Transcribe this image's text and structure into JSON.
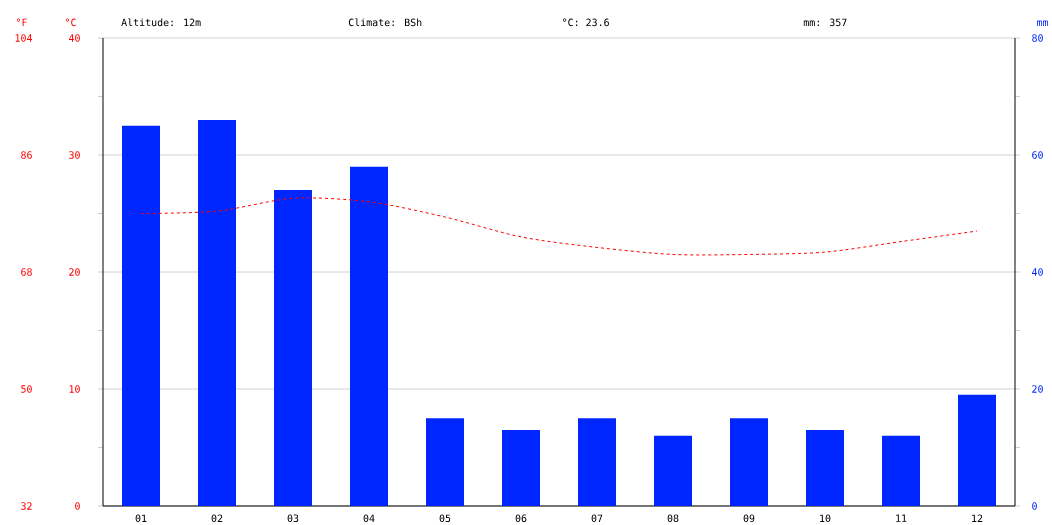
{
  "chart_data": {
    "type": "bar",
    "categories": [
      "01",
      "02",
      "03",
      "04",
      "05",
      "06",
      "07",
      "08",
      "09",
      "10",
      "11",
      "12"
    ],
    "series": [
      {
        "axis": "y2",
        "color": "#0026ff",
        "values": [
          65,
          66,
          54,
          58,
          15,
          13,
          15,
          12,
          15,
          13,
          12,
          19
        ]
      },
      {
        "type": "line",
        "color": "#ff0000",
        "line_style": "dashed",
        "values": [
          25.0,
          25.2,
          26.3,
          26.0,
          24.7,
          23.0,
          22.1,
          21.5,
          21.5,
          21.7,
          22.6,
          23.5
        ]
      }
    ],
    "ylabel": "°C",
    "y2label": "mm",
    "y3label": "°F",
    "ylim": [
      0,
      40
    ],
    "yticks": [
      0,
      {
        "value": 5,
        "label": null
      },
      10,
      {
        "value": 15,
        "label": null
      },
      20,
      {
        "value": 25,
        "label": null
      },
      30,
      {
        "value": 35,
        "label": null
      },
      40
    ],
    "y2lim": [
      0,
      80
    ],
    "y2ticks": [
      0,
      {
        "value": 10,
        "label": null
      },
      20,
      {
        "value": 30,
        "label": null
      },
      40,
      {
        "value": 50,
        "label": null
      },
      60,
      {
        "value": 70,
        "label": null
      },
      80
    ],
    "y3lim": [
      32,
      104
    ],
    "y3ticks": [
      32,
      50,
      68,
      86,
      104
    ],
    "grid": "y",
    "annotations": [
      "Altitude: 12m",
      "Climate: BSh",
      "°C: 23.6",
      "mm: 357"
    ]
  }
}
